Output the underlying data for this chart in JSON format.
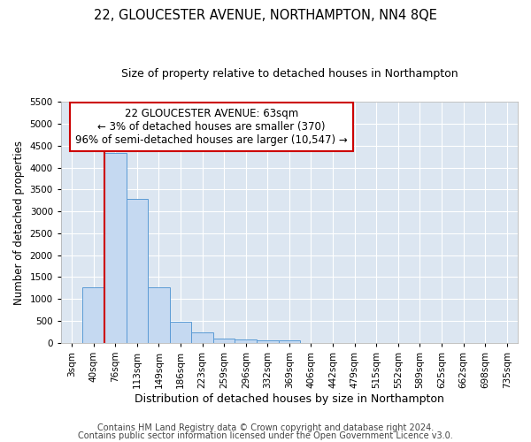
{
  "title": "22, GLOUCESTER AVENUE, NORTHAMPTON, NN4 8QE",
  "subtitle": "Size of property relative to detached houses in Northampton",
  "xlabel": "Distribution of detached houses by size in Northampton",
  "ylabel": "Number of detached properties",
  "footnote1": "Contains HM Land Registry data © Crown copyright and database right 2024.",
  "footnote2": "Contains public sector information licensed under the Open Government Licence v3.0.",
  "categories": [
    "3sqm",
    "40sqm",
    "76sqm",
    "113sqm",
    "149sqm",
    "186sqm",
    "223sqm",
    "259sqm",
    "296sqm",
    "332sqm",
    "369sqm",
    "406sqm",
    "442sqm",
    "479sqm",
    "515sqm",
    "552sqm",
    "589sqm",
    "625sqm",
    "662sqm",
    "698sqm",
    "735sqm"
  ],
  "bar_values": [
    0,
    1270,
    4340,
    3290,
    1270,
    490,
    230,
    90,
    80,
    55,
    50,
    0,
    0,
    0,
    0,
    0,
    0,
    0,
    0,
    0,
    0
  ],
  "bar_color": "#c5d9f1",
  "bar_edge_color": "#5b9bd5",
  "ylim": [
    0,
    5500
  ],
  "yticks": [
    0,
    500,
    1000,
    1500,
    2000,
    2500,
    3000,
    3500,
    4000,
    4500,
    5000,
    5500
  ],
  "property_line_label": "22 GLOUCESTER AVENUE: 63sqm",
  "annotation_line2": "← 3% of detached houses are smaller (370)",
  "annotation_line3": "96% of semi-detached houses are larger (10,547) →",
  "annotation_box_color": "#ffffff",
  "annotation_box_edge": "#cc0000",
  "vline_color": "#cc0000",
  "bg_color": "#dce6f1",
  "grid_color": "#ffffff",
  "title_fontsize": 10.5,
  "subtitle_fontsize": 9,
  "xlabel_fontsize": 9,
  "ylabel_fontsize": 8.5,
  "tick_fontsize": 7.5,
  "annotation_fontsize": 8.5,
  "footnote_fontsize": 7
}
